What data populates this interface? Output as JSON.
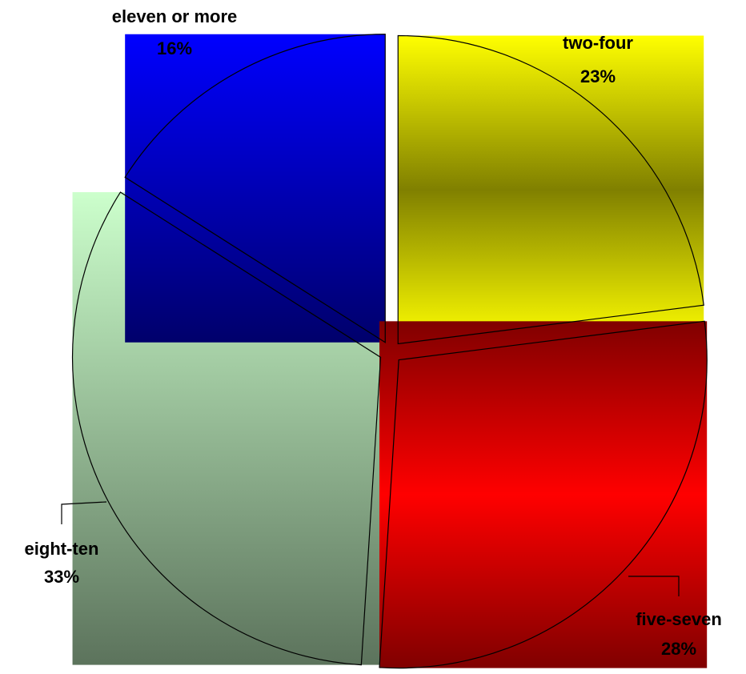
{
  "chart_data": {
    "type": "pie",
    "categories": [
      "two-four",
      "five-seven",
      "eight-ten",
      "eleven or more"
    ],
    "values": [
      23,
      28,
      33,
      16
    ],
    "value_labels": [
      "23%",
      "28%",
      "33%",
      "16%"
    ],
    "colors": [
      "#ffff00",
      "#ff0000",
      "#ccffcc",
      "#0000ff"
    ],
    "exploded": true
  }
}
